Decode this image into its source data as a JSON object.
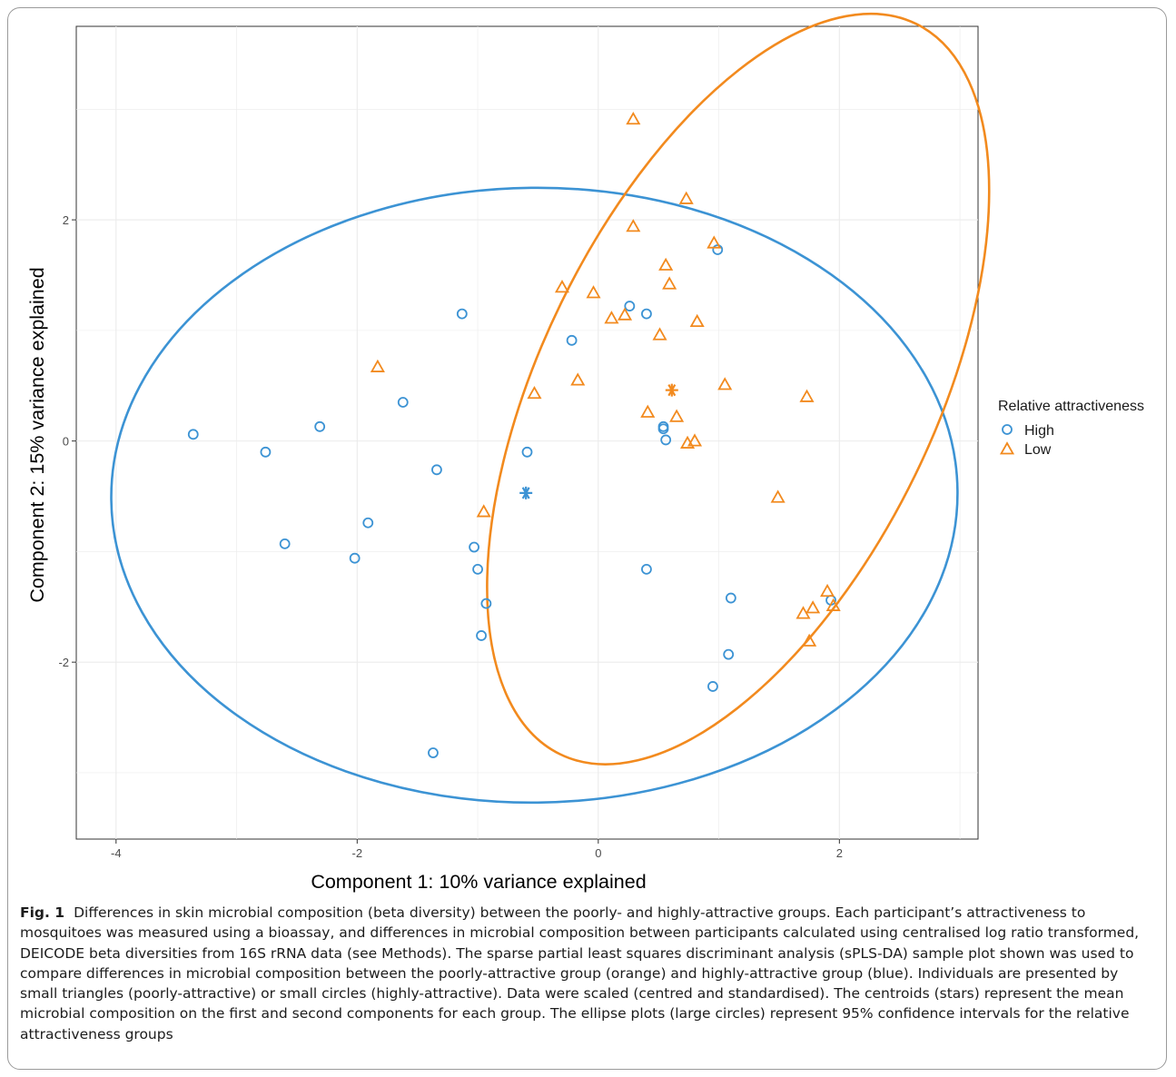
{
  "chart_data": {
    "type": "scatter",
    "xlabel": "Component 1: 10% variance explained",
    "ylabel": "Component 2: 15% variance explained",
    "xlim": [
      -4.33,
      3.15
    ],
    "ylim": [
      -3.6,
      3.75
    ],
    "xticks": [
      -4,
      -2,
      0,
      2
    ],
    "yticks": [
      -2,
      0,
      2
    ],
    "grid": true,
    "legend": {
      "title": "Relative attractiveness",
      "placement": "right",
      "entries": [
        {
          "label": "High",
          "marker": "circle",
          "color": "#3c93d4"
        },
        {
          "label": "Low",
          "marker": "triangle",
          "color": "#f28a1e"
        }
      ]
    },
    "series": [
      {
        "name": "High",
        "marker": "circle",
        "color": "#3c93d4",
        "points": [
          [
            -3.36,
            0.06
          ],
          [
            -2.76,
            -0.1
          ],
          [
            -2.6,
            -0.93
          ],
          [
            -2.31,
            0.13
          ],
          [
            -2.02,
            -1.06
          ],
          [
            -1.91,
            -0.74
          ],
          [
            -1.62,
            0.35
          ],
          [
            -1.37,
            -2.82
          ],
          [
            -1.34,
            -0.26
          ],
          [
            -1.13,
            1.15
          ],
          [
            -1.03,
            -0.96
          ],
          [
            -1.0,
            -1.16
          ],
          [
            -0.97,
            -1.76
          ],
          [
            -0.93,
            -1.47
          ],
          [
            -0.59,
            -0.1
          ],
          [
            -0.22,
            0.91
          ],
          [
            0.26,
            1.22
          ],
          [
            0.4,
            1.15
          ],
          [
            0.4,
            -1.16
          ],
          [
            0.54,
            0.13
          ],
          [
            0.54,
            0.11
          ],
          [
            0.56,
            0.01
          ],
          [
            0.95,
            -2.22
          ],
          [
            0.99,
            1.73
          ],
          [
            1.08,
            -1.93
          ],
          [
            1.1,
            -1.42
          ],
          [
            1.93,
            -1.44
          ]
        ],
        "centroid": [
          -0.6,
          -0.47
        ]
      },
      {
        "name": "Low",
        "marker": "triangle",
        "color": "#f28a1e",
        "points": [
          [
            -1.83,
            0.67
          ],
          [
            -0.95,
            -0.64
          ],
          [
            -0.53,
            0.43
          ],
          [
            -0.3,
            1.39
          ],
          [
            -0.17,
            0.55
          ],
          [
            -0.04,
            1.34
          ],
          [
            0.11,
            1.11
          ],
          [
            0.22,
            1.14
          ],
          [
            0.29,
            2.91
          ],
          [
            0.29,
            1.94
          ],
          [
            0.41,
            0.26
          ],
          [
            0.51,
            0.96
          ],
          [
            0.56,
            1.59
          ],
          [
            0.59,
            1.42
          ],
          [
            0.65,
            0.22
          ],
          [
            0.73,
            2.19
          ],
          [
            0.74,
            -0.02
          ],
          [
            0.8,
            0.0
          ],
          [
            0.82,
            1.08
          ],
          [
            0.96,
            1.79
          ],
          [
            1.05,
            0.51
          ],
          [
            1.49,
            -0.51
          ],
          [
            1.73,
            0.4
          ],
          [
            1.7,
            -1.56
          ],
          [
            1.75,
            -1.81
          ],
          [
            1.78,
            -1.51
          ],
          [
            1.9,
            -1.36
          ],
          [
            1.95,
            -1.49
          ]
        ],
        "centroid": [
          0.61,
          0.46
        ]
      }
    ],
    "ellipses": [
      {
        "group": "High",
        "center": [
          -0.53,
          -0.49
        ],
        "rx": 3.51,
        "ry": 2.78,
        "rotation_deg": -0.6,
        "color": "#3c93d4"
      },
      {
        "group": "Low",
        "center": [
          1.16,
          0.47
        ],
        "rx": 3.37,
        "ry": 1.78,
        "rotation_deg": -64,
        "color": "#f28a1e"
      }
    ]
  },
  "caption": {
    "label": "Fig. 1",
    "text": "Differences in skin microbial composition (beta diversity) between the poorly- and highly-attractive groups. Each participant’s attractiveness to mosquitoes was measured using a bioassay, and differences in microbial composition between participants calculated using centralised log ratio transformed, DEICODE beta diversities from 16S rRNA data (see Methods). The sparse partial least squares discriminant analysis (sPLS-DA) sample plot shown was used to compare differences in microbial composition between the poorly-attractive group (orange) and highly-attractive group (blue). Individuals are presented by small triangles (poorly-attractive) or small circles (highly-attractive). Data were scaled (centred and standardised). The centroids (stars) represent the mean microbial composition on the first and second components for each group. The ellipse plots (large circles) represent 95% confidence intervals for the relative attractiveness groups"
  }
}
